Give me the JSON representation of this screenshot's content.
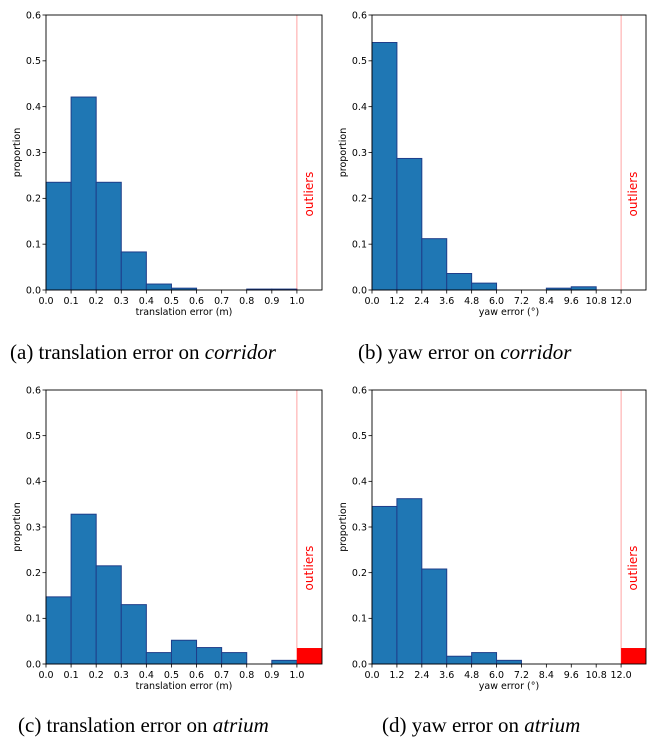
{
  "colors": {
    "bar_fill": "#1f77b4",
    "bar_edge": "#1f3e8a",
    "outlier": "#ff0000"
  },
  "chart_data": [
    {
      "type": "bar",
      "xlabel": "translation error (m)",
      "ylabel": "proportion",
      "xlim": [
        0.0,
        1.1
      ],
      "ylim": [
        0,
        0.6
      ],
      "xticks": [
        "0.0",
        "0.1",
        "0.2",
        "0.3",
        "0.4",
        "0.5",
        "0.6",
        "0.7",
        "0.8",
        "0.9",
        "1.0"
      ],
      "yticks": [
        "0.0",
        "0.1",
        "0.2",
        "0.3",
        "0.4",
        "0.5",
        "0.6"
      ],
      "bin_edges": [
        0.0,
        0.1,
        0.2,
        0.3,
        0.4,
        0.5,
        0.6,
        0.7,
        0.8,
        0.9,
        1.0
      ],
      "values": [
        0.235,
        0.421,
        0.235,
        0.083,
        0.013,
        0.004,
        0.0,
        0.0,
        0.002,
        0.002
      ],
      "outlier_line": 1.0,
      "outlier_label": "outliers",
      "outlier_value": 0.0,
      "caption": {
        "prefix": "(a) translation error on ",
        "italic": "corridor"
      }
    },
    {
      "type": "bar",
      "xlabel": "yaw error (°)",
      "ylabel": "proportion",
      "xlim": [
        0.0,
        13.2
      ],
      "ylim": [
        0,
        0.6
      ],
      "xticks": [
        "0.0",
        "1.2",
        "2.4",
        "3.6",
        "4.8",
        "6.0",
        "7.2",
        "8.4",
        "9.6",
        "10.8",
        "12.0"
      ],
      "yticks": [
        "0.0",
        "0.1",
        "0.2",
        "0.3",
        "0.4",
        "0.5",
        "0.6"
      ],
      "bin_edges": [
        0.0,
        1.2,
        2.4,
        3.6,
        4.8,
        6.0,
        7.2,
        8.4,
        9.6,
        10.8,
        12.0
      ],
      "values": [
        0.54,
        0.287,
        0.112,
        0.036,
        0.015,
        0.0,
        0.0,
        0.004,
        0.007,
        0.0
      ],
      "outlier_line": 12.0,
      "outlier_label": "outliers",
      "outlier_value": 0.0,
      "caption": {
        "prefix": "(b) yaw error on ",
        "italic": "corridor"
      }
    },
    {
      "type": "bar",
      "xlabel": "translation error (m)",
      "ylabel": "proportion",
      "xlim": [
        0.0,
        1.1
      ],
      "ylim": [
        0,
        0.6
      ],
      "xticks": [
        "0.0",
        "0.1",
        "0.2",
        "0.3",
        "0.4",
        "0.5",
        "0.6",
        "0.7",
        "0.8",
        "0.9",
        "1.0"
      ],
      "yticks": [
        "0.0",
        "0.1",
        "0.2",
        "0.3",
        "0.4",
        "0.5",
        "0.6"
      ],
      "bin_edges": [
        0.0,
        0.1,
        0.2,
        0.3,
        0.4,
        0.5,
        0.6,
        0.7,
        0.8,
        0.9,
        1.0
      ],
      "values": [
        0.147,
        0.328,
        0.215,
        0.13,
        0.025,
        0.052,
        0.036,
        0.025,
        0.0,
        0.008
      ],
      "outlier_line": 1.0,
      "outlier_label": "outliers",
      "outlier_value": 0.035,
      "caption": {
        "prefix": "(c) translation error on ",
        "italic": "atrium"
      }
    },
    {
      "type": "bar",
      "xlabel": "yaw error (°)",
      "ylabel": "proportion",
      "xlim": [
        0.0,
        13.2
      ],
      "ylim": [
        0,
        0.6
      ],
      "xticks": [
        "0.0",
        "1.2",
        "2.4",
        "3.6",
        "4.8",
        "6.0",
        "7.2",
        "8.4",
        "9.6",
        "10.8",
        "12.0"
      ],
      "yticks": [
        "0.0",
        "0.1",
        "0.2",
        "0.3",
        "0.4",
        "0.5",
        "0.6"
      ],
      "bin_edges": [
        0.0,
        1.2,
        2.4,
        3.6,
        4.8,
        6.0,
        7.2,
        8.4,
        9.6,
        10.8,
        12.0
      ],
      "values": [
        0.345,
        0.362,
        0.208,
        0.017,
        0.025,
        0.008,
        0.0,
        0.0,
        0.0,
        0.0
      ],
      "outlier_line": 12.0,
      "outlier_label": "outliers",
      "outlier_value": 0.035,
      "caption": {
        "prefix": "(d) yaw error on ",
        "italic": "atrium"
      }
    }
  ]
}
